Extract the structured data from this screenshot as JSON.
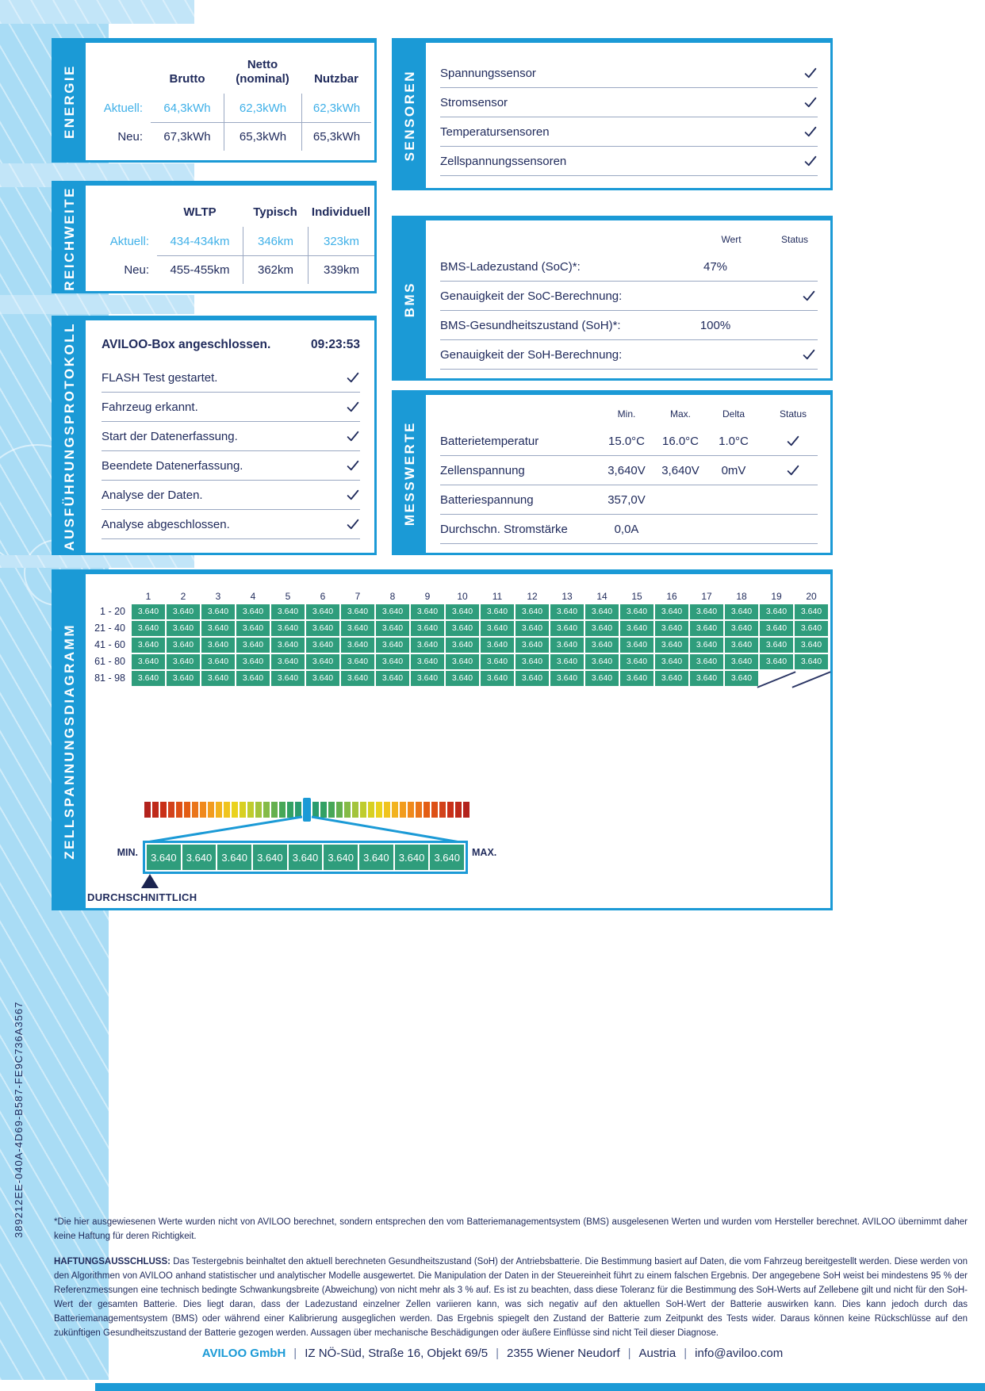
{
  "colors": {
    "accent_blue": "#1b9ad6",
    "navy": "#202b5c",
    "light_blue_text": "#3fb0e8",
    "cell_green": "#2f9d7c",
    "band_blue": "#a9dcf5"
  },
  "sections": {
    "energie": {
      "label": "ENERGIE",
      "columns": [
        "Brutto",
        "Netto\n(nominal)",
        "Nutzbar"
      ],
      "rows": [
        {
          "label": "Aktuell:",
          "values": [
            "64,3kWh",
            "62,3kWh",
            "62,3kWh"
          ],
          "highlight": true
        },
        {
          "label": "Neu:",
          "values": [
            "67,3kWh",
            "65,3kWh",
            "65,3kWh"
          ],
          "highlight": false
        }
      ]
    },
    "reichweite": {
      "label": "REICHWEITE",
      "columns": [
        "WLTP",
        "Typisch",
        "Individuell"
      ],
      "rows": [
        {
          "label": "Aktuell:",
          "values": [
            "434-434km",
            "346km",
            "323km"
          ],
          "highlight": true
        },
        {
          "label": "Neu:",
          "values": [
            "455-455km",
            "362km",
            "339km"
          ],
          "highlight": false
        }
      ]
    },
    "sensoren": {
      "label": "SENSOREN",
      "items": [
        {
          "text": "Spannungssensor",
          "check": true
        },
        {
          "text": "Stromsensor",
          "check": true
        },
        {
          "text": "Temperatursensoren",
          "check": true
        },
        {
          "text": "Zellspannungssensoren",
          "check": true
        }
      ]
    },
    "protokoll": {
      "label": "AUSFÜHRUNGSPROTOKOLL",
      "title": "AVILOO-Box angeschlossen.",
      "time": "09:23:53",
      "items": [
        {
          "text": "FLASH Test gestartet.",
          "check": true
        },
        {
          "text": "Fahrzeug erkannt.",
          "check": true
        },
        {
          "text": "Start der Datenerfassung.",
          "check": true
        },
        {
          "text": "Beendete Datenerfassung.",
          "check": true
        },
        {
          "text": "Analyse der Daten.",
          "check": true
        },
        {
          "text": "Analyse abgeschlossen.",
          "check": true
        }
      ]
    },
    "bms": {
      "label": "BMS",
      "columns": [
        "Wert",
        "Status"
      ],
      "rows": [
        {
          "text": "BMS-Ladezustand (SoC)*:",
          "wert": "47%",
          "check": false
        },
        {
          "text": "Genauigkeit der SoC-Berechnung:",
          "wert": "",
          "check": true
        },
        {
          "text": "BMS-Gesundheitszustand (SoH)*:",
          "wert": "100%",
          "check": false
        },
        {
          "text": "Genauigkeit der SoH-Berechnung:",
          "wert": "",
          "check": true
        }
      ]
    },
    "messwerte": {
      "label": "MESSWERTE",
      "columns": [
        "Min.",
        "Max.",
        "Delta",
        "Status"
      ],
      "rows": [
        {
          "text": "Batterietemperatur",
          "min": "15.0°C",
          "max": "16.0°C",
          "delta": "1.0°C",
          "check": true
        },
        {
          "text": "Zellenspannung",
          "min": "3,640V",
          "max": "3,640V",
          "delta": "0mV",
          "check": true
        },
        {
          "text": "Batteriespannung",
          "min": "357,0V",
          "max": "",
          "delta": "",
          "check": false
        },
        {
          "text": "Durchschn. Stromstärke",
          "min": "0,0A",
          "max": "",
          "delta": "",
          "check": false
        }
      ]
    },
    "zellen": {
      "label": "ZELLSPANNUNGSDIAGRAMM",
      "cell_value": "3.640",
      "col_numbers": [
        1,
        2,
        3,
        4,
        5,
        6,
        7,
        8,
        9,
        10,
        11,
        12,
        13,
        14,
        15,
        16,
        17,
        18,
        19,
        20
      ],
      "rows": [
        {
          "label": "1 - 20",
          "count": 20
        },
        {
          "label": "21 - 40",
          "count": 20
        },
        {
          "label": "41 - 60",
          "count": 20
        },
        {
          "label": "61 - 80",
          "count": 20
        },
        {
          "label": "81 - 98",
          "count": 18
        }
      ],
      "min_label": "MIN.",
      "max_label": "MAX.",
      "avg_label": "DURCHSCHNITTLICH",
      "zoom_values": [
        "3.640",
        "3.640",
        "3.640",
        "3.640",
        "3.640",
        "3.640",
        "3.640",
        "3.640",
        "3.640"
      ],
      "gradient_left": [
        "#b3231d",
        "#bf2a1a",
        "#c93018",
        "#d2421b",
        "#dd5016",
        "#e35d14",
        "#ea751a",
        "#f0891c",
        "#f29c1e",
        "#f2b31e",
        "#f0c41e",
        "#ead21d",
        "#d8d021",
        "#bfcc2e",
        "#a3c43c",
        "#85bb47",
        "#64b04e",
        "#47a757",
        "#33a164",
        "#2b9d6f"
      ],
      "marker_color": "#1b9ad6"
    }
  },
  "footer": {
    "doc_id": "389212EE-040A-4D69-B587-FE9C736A3567",
    "note": "*Die hier ausgewiesenen Werte wurden nicht von AVILOO berechnet, sondern entsprechen den vom Batteriemanagementsystem (BMS) ausgelesenen Werten und wurden vom Hersteller berechnet. AVILOO übernimmt daher keine Haftung für deren Richtigkeit.",
    "disclaimer_label": "HAFTUNGSAUSSCHLUSS:",
    "disclaimer": "Das Testergebnis beinhaltet den aktuell berechneten Gesundheitszustand (SoH) der Antriebsbatterie. Die Bestimmung basiert auf Daten, die vom Fahrzeug bereitgestellt werden. Diese werden von den Algorithmen von AVILOO anhand statistischer und analytischer Modelle ausgewertet. Die Manipulation der Daten in der Steuereinheit führt zu einem falschen Ergebnis. Der angegebene SoH weist bei mindestens 95 % der Referenzmessungen eine technisch bedingte Schwankungsbreite (Abweichung) von nicht mehr als 3 % auf. Es ist zu beachten, dass diese Toleranz für die Bestimmung des SoH-Werts auf Zellebene gilt und nicht für den SoH-Wert der gesamten Batterie. Dies liegt daran, dass der Ladezustand einzelner Zellen variieren kann, was sich negativ auf den aktuellen SoH-Wert der Batterie auswirken kann. Dies kann jedoch durch das Batteriemanagementsystem (BMS) oder während einer Kalibrierung ausgeglichen werden. Das Ergebnis spiegelt den Zustand der Batterie zum Zeitpunkt des Tests wider. Daraus können keine Rückschlüsse auf den zukünftigen Gesundheitszustand der Batterie gezogen werden. Aussagen über mechanische Beschädigungen oder äußere Einflüsse sind nicht Teil dieser Diagnose.",
    "contact": {
      "company": "AVILOO GmbH",
      "separator": "|",
      "items": [
        "IZ NÖ-Süd, Straße 16, Objekt 69/5",
        "2355 Wiener Neudorf",
        "Austria",
        "info@aviloo.com"
      ]
    }
  }
}
